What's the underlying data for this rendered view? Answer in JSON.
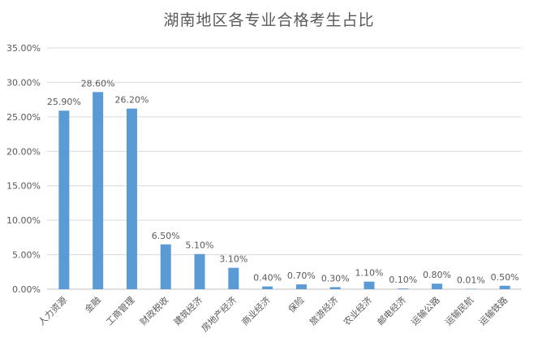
{
  "chart_data": {
    "type": "bar",
    "title": "湖南地区各专业合格考生占比",
    "categories": [
      "人力资源",
      "金融",
      "工商管理",
      "财政税收",
      "建筑经济",
      "房地产经济",
      "商业经济",
      "保险",
      "旅游经济",
      "农业经济",
      "邮电经济",
      "运输公路",
      "运输民航",
      "运输铁路"
    ],
    "values": [
      25.9,
      28.6,
      26.2,
      6.5,
      5.1,
      3.1,
      0.4,
      0.7,
      0.3,
      1.1,
      0.1,
      0.8,
      0.01,
      0.5
    ],
    "data_labels": [
      "25.90%",
      "28.60%",
      "26.20%",
      "6.50%",
      "5.10%",
      "3.10%",
      "0.40%",
      "0.70%",
      "0.30%",
      "1.10%",
      "0.10%",
      "0.80%",
      "0.01%",
      "0.50%"
    ],
    "ytick_labels": [
      "0.00%",
      "5.00%",
      "10.00%",
      "15.00%",
      "20.00%",
      "25.00%",
      "30.00%",
      "35.00%"
    ],
    "yticks": [
      0,
      5,
      10,
      15,
      20,
      25,
      30,
      35
    ],
    "ylim": [
      0,
      35
    ],
    "xlabel": "",
    "ylabel": "",
    "grid": true,
    "legend": "none",
    "bar_color": "#5B9BD5",
    "grid_color": "#D9D9D9",
    "text_color": "#595959"
  }
}
